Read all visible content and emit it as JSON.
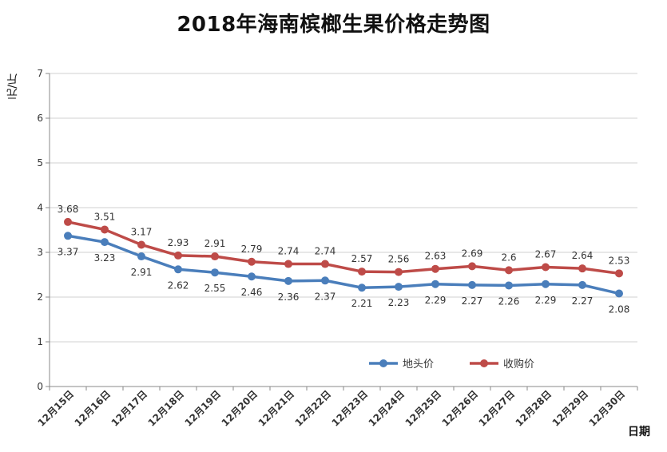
{
  "chart_data": {
    "type": "line",
    "title": "2018年海南槟榔生果价格走势图",
    "ylabel": "元/斤",
    "xlabel": "日期",
    "ylim": [
      0,
      7
    ],
    "yticks": [
      0,
      1,
      2,
      3,
      4,
      5,
      6,
      7
    ],
    "grid": true,
    "legend_position": "lower-right",
    "categories": [
      "12月15日",
      "12月16日",
      "12月17日",
      "12月18日",
      "12月19日",
      "12月20日",
      "12月21日",
      "12月22日",
      "12月23日",
      "12月24日",
      "12月25日",
      "12月26日",
      "12月27日",
      "12月28日",
      "12月29日",
      "12月30日"
    ],
    "series": [
      {
        "name": "地头价",
        "color": "#4a7ebb",
        "values": [
          3.37,
          3.23,
          2.91,
          2.62,
          2.55,
          2.46,
          2.36,
          2.37,
          2.21,
          2.23,
          2.29,
          2.27,
          2.26,
          2.29,
          2.27,
          2.08
        ],
        "labels": [
          "3.37",
          "3.23",
          "2.91",
          "2.62",
          "2.55",
          "2.46",
          "2.36",
          "2.37",
          "2.21",
          "2.23",
          "2.29",
          "2.27",
          "2.26",
          "2.29",
          "2.27",
          "2.08"
        ]
      },
      {
        "name": "收购价",
        "color": "#be4b48",
        "values": [
          3.68,
          3.51,
          3.17,
          2.93,
          2.91,
          2.79,
          2.74,
          2.74,
          2.57,
          2.56,
          2.63,
          2.69,
          2.6,
          2.67,
          2.64,
          2.53
        ],
        "labels": [
          "3.68",
          "3.51",
          "3.17",
          "2.93",
          "2.91",
          "2.79",
          "2.74",
          "2.74",
          "2.57",
          "2.56",
          "2.63",
          "2.69",
          "2.6",
          "2.67",
          "2.64",
          "2.53"
        ]
      }
    ]
  }
}
